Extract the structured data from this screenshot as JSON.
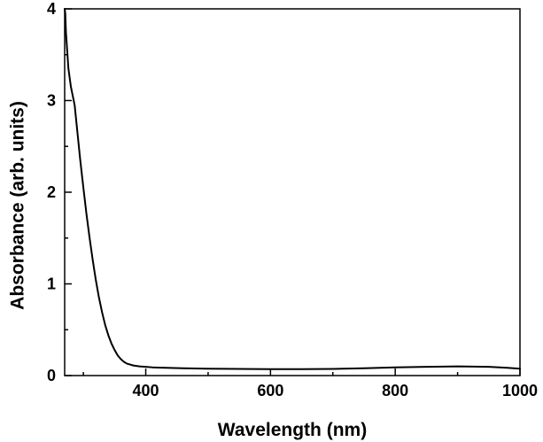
{
  "chart_data": {
    "type": "line",
    "title": "",
    "xlabel": "Wavelength (nm)",
    "ylabel": "Absorbance (arb. units)",
    "xlim": [
      270,
      1000
    ],
    "ylim": [
      0,
      4
    ],
    "xticks_major": [
      400,
      600,
      800,
      1000
    ],
    "xticks_minor": [
      300,
      500,
      700,
      900
    ],
    "yticks_major": [
      0,
      1,
      2,
      3,
      4
    ],
    "yticks_minor": [
      0.5,
      1.5,
      2.5,
      3.5
    ],
    "xtick_labels": [
      "400",
      "600",
      "800",
      "1000"
    ],
    "ytick_labels": [
      "0",
      "1",
      "2",
      "3",
      "4"
    ],
    "grid": false,
    "legend": "none",
    "line_color": "#000000",
    "series": [
      {
        "x": [
          270,
          271,
          272,
          274,
          276,
          278,
          280,
          283,
          286,
          289,
          292,
          295,
          300,
          305,
          310,
          315,
          320,
          325,
          330,
          335,
          340,
          345,
          350,
          355,
          360,
          365,
          370,
          375,
          380,
          385,
          390,
          395,
          400,
          410,
          420,
          440,
          460,
          500,
          550,
          600,
          650,
          700,
          750,
          800,
          850,
          900,
          950,
          980,
          1000
        ],
        "y": [
          4.0,
          3.95,
          3.75,
          3.55,
          3.35,
          3.25,
          3.15,
          3.05,
          2.95,
          2.75,
          2.55,
          2.35,
          2.05,
          1.76,
          1.5,
          1.26,
          1.04,
          0.85,
          0.69,
          0.55,
          0.44,
          0.35,
          0.28,
          0.22,
          0.18,
          0.15,
          0.13,
          0.12,
          0.11,
          0.105,
          0.1,
          0.098,
          0.095,
          0.09,
          0.087,
          0.083,
          0.08,
          0.075,
          0.072,
          0.07,
          0.07,
          0.072,
          0.08,
          0.09,
          0.095,
          0.1,
          0.095,
          0.085,
          0.075
        ]
      }
    ]
  }
}
